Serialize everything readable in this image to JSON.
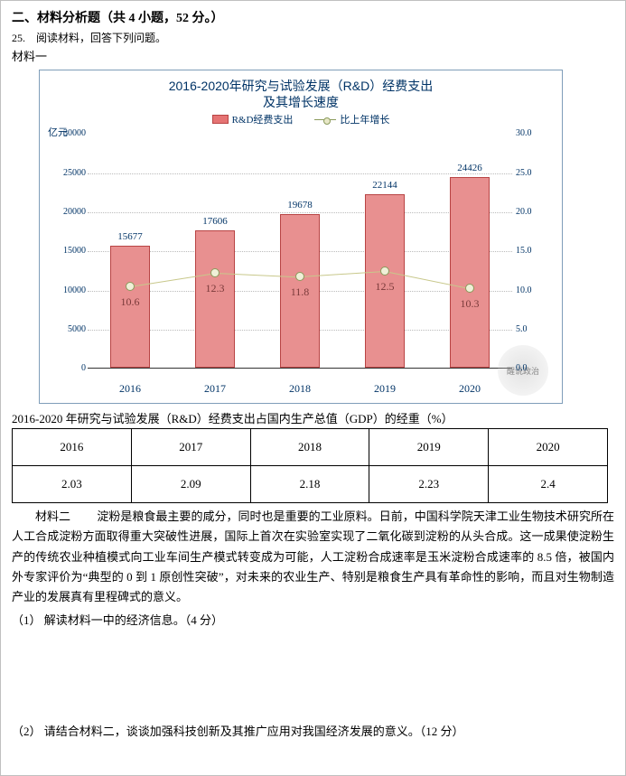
{
  "header": {
    "section_title": "二、材料分析题（共 4 小题，52 分。）",
    "question_number": "25.",
    "question_instruction": "阅读材料，回答下列问题。",
    "material_one_label": "材料一"
  },
  "chart": {
    "type": "bar+line",
    "title_line1": "2016-2020年研究与试验发展（R&D）经费支出",
    "title_line2": "及其增长速度",
    "legend_bar": "R&D经费支出",
    "legend_line": "比上年增长",
    "y_left_unit": "亿元",
    "y_right_unit": "",
    "y_left_ticks": [
      "30000",
      "25000",
      "20000",
      "15000",
      "10000",
      "5000",
      "0"
    ],
    "y_right_ticks": [
      "30.0",
      "25.0",
      "20.0",
      "15.0",
      "10.0",
      "5.0",
      "0.0"
    ],
    "years": [
      "2016",
      "2017",
      "2018",
      "2019",
      "2020"
    ],
    "bar_values": [
      "15677",
      "17606",
      "19678",
      "22144",
      "24426"
    ],
    "bar_values_num": [
      15677,
      17606,
      19678,
      22144,
      24426
    ],
    "line_values": [
      "10.6",
      "12.3",
      "11.8",
      "12.5",
      "10.3"
    ],
    "line_values_num": [
      10.6,
      12.3,
      11.8,
      12.5,
      10.3
    ],
    "y_left_max": 30000,
    "y_right_max": 30.0,
    "bar_color": "#e89090",
    "bar_border": "#b84444",
    "line_color": "#c8c88b",
    "dot_fill": "#f0f0d8",
    "dot_border": "#8a9a5b",
    "grid_color": "#bbbbbb",
    "label_color": "#003366",
    "watermark": "醒说政治"
  },
  "table": {
    "caption": "2016-2020 年研究与试验发展（R&D）经费支出占国内生产总值（GDP）的经重（%）",
    "headers": [
      "2016",
      "2017",
      "2018",
      "2019",
      "2020"
    ],
    "values": [
      "2.03",
      "2.09",
      "2.18",
      "2.23",
      "2.4"
    ]
  },
  "material_two": {
    "label": "材料二",
    "body": "淀粉是粮食最主要的咸分，同时也是重要的工业原料。日前，中国科学院天津工业生物技术研究所在人工合成淀粉方面取得重大突破性进展，国际上首次在实验室实现了二氧化碳到淀粉的从头合成。这一成果使淀粉生产的传统农业种植模式向工业车间生产模式转变成为可能，人工淀粉合成速率是玉米淀粉合成速率的 8.5 倍，被国内外专家评价为“典型的 0 到 1 原创性突破”，对未来的农业生产、特别是粮食生产具有革命性的影响，而且对生物制造产业的发展真有里程碑式的意义。"
  },
  "questions": {
    "q1": "（1） 解读材料一中的经济信息。（4 分）",
    "q2": "（2） 请结合材料二，谈谈加强科技创新及其推广应用对我国经济发展的意义。（12 分）"
  }
}
